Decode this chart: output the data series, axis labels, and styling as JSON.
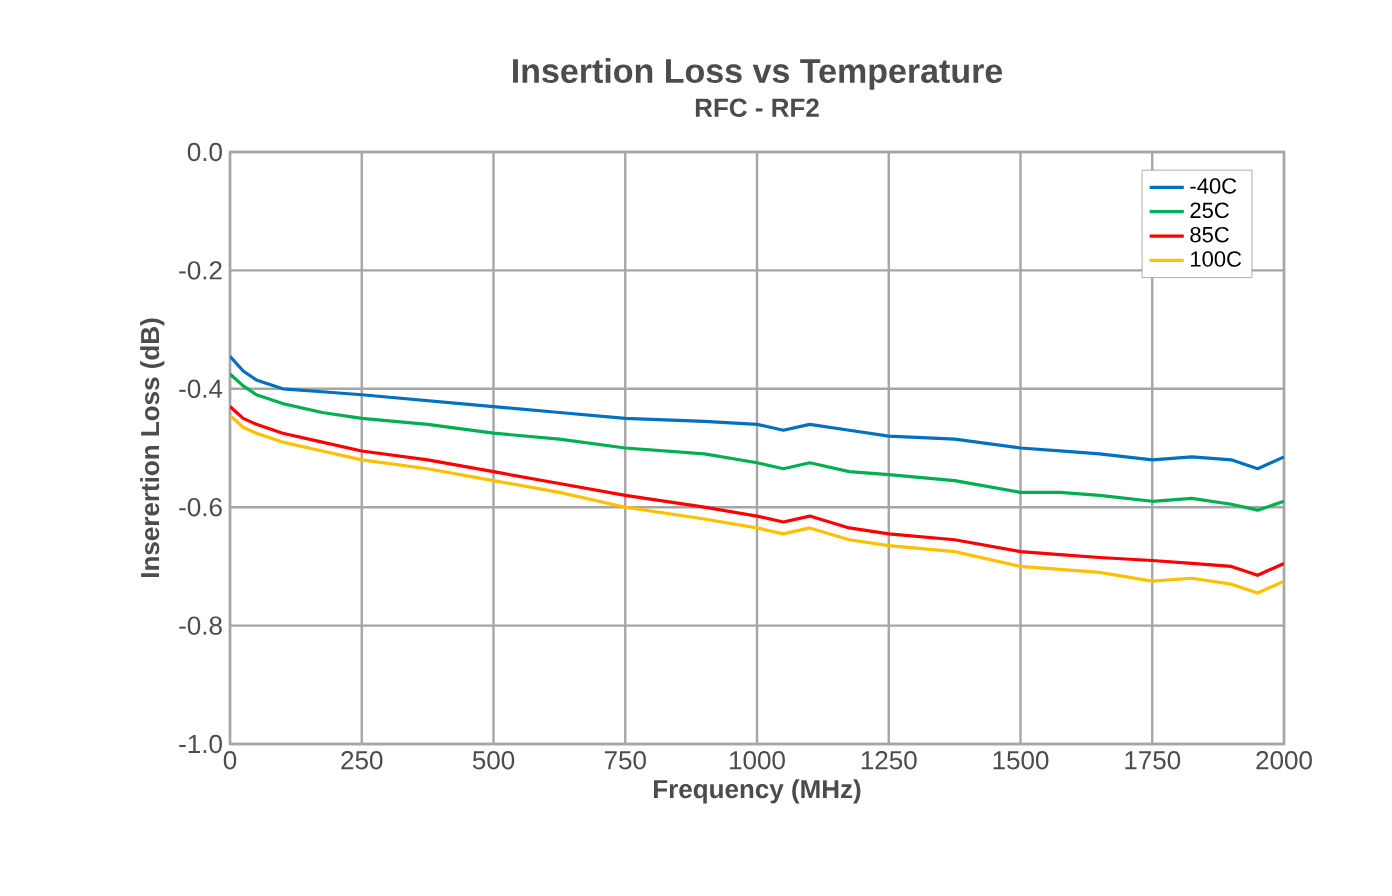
{
  "chart_data": {
    "type": "line",
    "title": "Insertion Loss vs Temperature",
    "subtitle": "RFC - RF2",
    "xlabel": "Frequency (MHz)",
    "ylabel": "Inserertion Loss (dB)",
    "xlim": [
      0,
      2000
    ],
    "ylim": [
      -1.0,
      0.0
    ],
    "xticks": [
      0,
      250,
      500,
      750,
      1000,
      1250,
      1500,
      1750,
      2000
    ],
    "yticks": [
      {
        "value": -1.0,
        "label": "-1.0"
      },
      -0.8,
      -0.6,
      -0.4,
      -0.2,
      {
        "value": 0.0,
        "label": "0.0"
      }
    ],
    "grid": true,
    "legend": "top right",
    "marker": "none",
    "line_style": "solid",
    "x": [
      0,
      25,
      50,
      100,
      175,
      250,
      375,
      500,
      625,
      750,
      900,
      1000,
      1050,
      1100,
      1175,
      1250,
      1375,
      1500,
      1575,
      1650,
      1750,
      1825,
      1900,
      1950,
      2000
    ],
    "series": [
      {
        "name": "-40C",
        "color": "#0070c0",
        "values": [
          -0.345,
          -0.37,
          -0.385,
          -0.4,
          -0.405,
          -0.41,
          -0.42,
          -0.43,
          -0.44,
          -0.45,
          -0.455,
          -0.46,
          -0.47,
          -0.46,
          -0.47,
          -0.48,
          -0.485,
          -0.5,
          -0.505,
          -0.51,
          -0.52,
          -0.515,
          -0.52,
          -0.535,
          -0.515
        ]
      },
      {
        "name": "25C",
        "color": "#00b050",
        "values": [
          -0.375,
          -0.395,
          -0.41,
          -0.425,
          -0.44,
          -0.45,
          -0.46,
          -0.475,
          -0.485,
          -0.5,
          -0.51,
          -0.525,
          -0.535,
          -0.525,
          -0.54,
          -0.545,
          -0.555,
          -0.575,
          -0.575,
          -0.58,
          -0.59,
          -0.585,
          -0.595,
          -0.605,
          -0.59
        ]
      },
      {
        "name": "85C",
        "color": "#ff0000",
        "values": [
          -0.43,
          -0.45,
          -0.46,
          -0.475,
          -0.49,
          -0.505,
          -0.52,
          -0.54,
          -0.56,
          -0.58,
          -0.6,
          -0.615,
          -0.625,
          -0.615,
          -0.635,
          -0.645,
          -0.655,
          -0.675,
          -0.68,
          -0.685,
          -0.69,
          -0.695,
          -0.7,
          -0.715,
          -0.695
        ]
      },
      {
        "name": "100C",
        "color": "#ffc000",
        "values": [
          -0.445,
          -0.465,
          -0.475,
          -0.49,
          -0.505,
          -0.52,
          -0.535,
          -0.555,
          -0.575,
          -0.6,
          -0.62,
          -0.635,
          -0.645,
          -0.635,
          -0.655,
          -0.665,
          -0.675,
          -0.7,
          -0.705,
          -0.71,
          -0.725,
          -0.72,
          -0.73,
          -0.745,
          -0.725
        ]
      }
    ]
  }
}
